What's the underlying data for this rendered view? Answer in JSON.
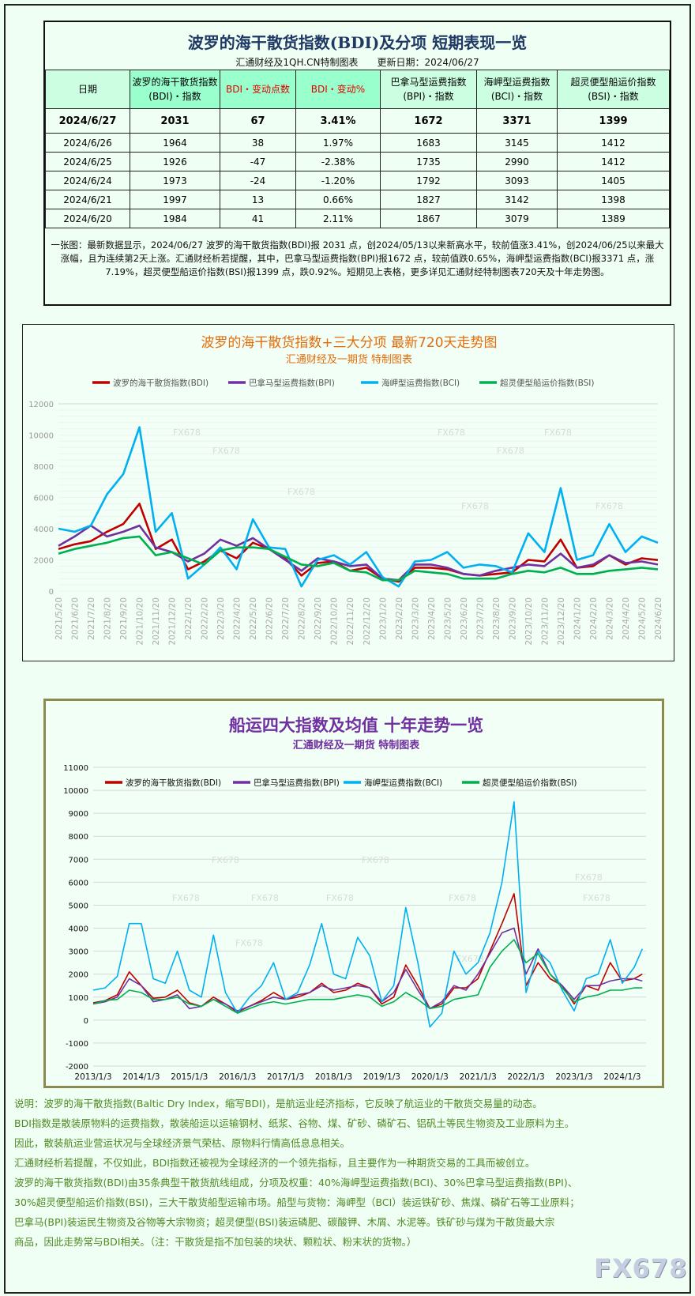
{
  "table": {
    "title": "波罗的海干散货指数(BDI)及分项 短期表现一览",
    "subtitle": "汇通财经及1QH.CN特制图表　　更新日期：2024/06/27",
    "headers": [
      "日期",
      "波罗的海干散货指数\n(BDI)・指数",
      "BDI・变动点数",
      "BDI・变动%",
      "巴拿马型运费指数\n(BPI)・指数",
      "海岬型运费指数\n(BCI)・指数",
      "超灵便型船运价指数\n(BSI)・指数"
    ],
    "rows": [
      [
        "2024/6/27",
        "2031",
        "67",
        "3.41%",
        "1672",
        "3371",
        "1399"
      ],
      [
        "2024/6/26",
        "1964",
        "38",
        "1.97%",
        "1683",
        "3145",
        "1412"
      ],
      [
        "2024/6/25",
        "1926",
        "-47",
        "-2.38%",
        "1735",
        "2990",
        "1412"
      ],
      [
        "2024/6/24",
        "1973",
        "-24",
        "-1.20%",
        "1792",
        "3093",
        "1405"
      ],
      [
        "2024/6/21",
        "1997",
        "13",
        "0.66%",
        "1827",
        "3142",
        "1398"
      ],
      [
        "2024/6/20",
        "1984",
        "41",
        "2.11%",
        "1867",
        "3079",
        "1389"
      ]
    ],
    "note": "一张图：最新数据显示，2024/06/27 波罗的海干散货指数(BDI)报 2031 点，创2024/05/13以来新高水平，较前值涨3.41%，创2024/06/25以来最大涨幅，且为连续第2天上涨。汇通财经析若提醒，其中，巴拿马型运费指数(BPI)报1672 点，较前值跌0.65%，海岬型运费指数(BCI)报3371 点，涨7.19%，超灵便型船运价指数(BSI)报1399 点，跌0.92%。短期见上表格，更多详见汇通财经特制图表720天及十年走势图。"
  },
  "chart_data": [
    {
      "type": "line",
      "title": "波罗的海干散货指数+三大分项  最新720天走势图",
      "subtitle": "汇通财经及一期货  特制图表",
      "title_color": "#e46c0a",
      "ylim": [
        0,
        12000
      ],
      "yticks": [
        0,
        2000,
        4000,
        6000,
        8000,
        10000,
        12000
      ],
      "grid": true,
      "legend": "top",
      "categories": [
        "2021/5/20",
        "2021/6/20",
        "2021/7/20",
        "2021/8/20",
        "2021/9/20",
        "2021/10/20",
        "2021/11/20",
        "2021/12/20",
        "2022/1/20",
        "2022/2/20",
        "2022/3/20",
        "2022/4/20",
        "2022/5/20",
        "2022/6/20",
        "2022/7/20",
        "2022/8/20",
        "2022/9/20",
        "2022/10/20",
        "2022/11/20",
        "2022/12/20",
        "2023/1/20",
        "2023/2/20",
        "2023/3/20",
        "2023/4/20",
        "2023/5/20",
        "2023/6/20",
        "2023/7/20",
        "2023/8/20",
        "2023/9/20",
        "2023/10/20",
        "2023/11/20",
        "2023/12/20",
        "2024/1/20",
        "2024/2/20",
        "2024/3/20",
        "2024/4/20",
        "2024/5/20",
        "2024/6/20"
      ],
      "series": [
        {
          "name": "波罗的海干散货指数(BDI)",
          "color": "#c00000",
          "values": [
            2700,
            3000,
            3200,
            3800,
            4300,
            5600,
            2700,
            3300,
            1400,
            1900,
            2600,
            2100,
            3100,
            2700,
            2100,
            1000,
            1800,
            1900,
            1300,
            1500,
            800,
            600,
            1500,
            1500,
            1400,
            1100,
            1000,
            1100,
            1200,
            2000,
            1900,
            3300,
            1500,
            1600,
            2300,
            1700,
            2100,
            1990
          ]
        },
        {
          "name": "巴拿马型运费指数(BPI)",
          "color": "#7030a0",
          "values": [
            2900,
            3500,
            4200,
            3500,
            3800,
            4200,
            2800,
            2500,
            1900,
            2400,
            3300,
            2900,
            3400,
            2700,
            2000,
            1300,
            2100,
            1900,
            1600,
            1700,
            800,
            700,
            1700,
            1700,
            1500,
            1100,
            1000,
            1300,
            1500,
            1700,
            1600,
            2400,
            1500,
            1700,
            2300,
            1800,
            1900,
            1700
          ]
        },
        {
          "name": "海岬型运费指数(BCI)",
          "color": "#00b0f0",
          "values": [
            4000,
            3800,
            4200,
            6200,
            7500,
            10500,
            3800,
            5000,
            800,
            1700,
            2800,
            1400,
            4600,
            2800,
            2700,
            300,
            2000,
            2300,
            1700,
            2500,
            900,
            300,
            1900,
            2000,
            2500,
            1500,
            1700,
            1600,
            1200,
            3700,
            2500,
            6600,
            2000,
            2300,
            4300,
            2500,
            3500,
            3100
          ]
        },
        {
          "name": "超灵便型船运价指数(BSI)",
          "color": "#00b050",
          "values": [
            2400,
            2700,
            2900,
            3100,
            3400,
            3500,
            2300,
            2500,
            2100,
            1700,
            2600,
            2800,
            2800,
            2700,
            2200,
            1700,
            1600,
            1800,
            1300,
            1200,
            700,
            700,
            1300,
            1200,
            1100,
            800,
            800,
            800,
            1100,
            1300,
            1200,
            1500,
            1100,
            1100,
            1300,
            1400,
            1500,
            1400
          ]
        }
      ],
      "watermark": "FX678"
    },
    {
      "type": "line",
      "title": "船运四大指数及均值 十年走势一览",
      "subtitle": "汇通财经及一期货 特制图表",
      "title_color": "#7030a0",
      "ylim": [
        -2000,
        11000
      ],
      "yticks": [
        -2000,
        -1000,
        0,
        1000,
        2000,
        3000,
        4000,
        5000,
        6000,
        7000,
        8000,
        9000,
        10000,
        11000
      ],
      "grid": true,
      "legend": "top",
      "xticks": [
        "2013/1/3",
        "2014/1/3",
        "2015/1/3",
        "2016/1/3",
        "2017/1/3",
        "2018/1/3",
        "2019/1/3",
        "2020/1/3",
        "2021/1/3",
        "2022/1/3",
        "2023/1/3",
        "2024/1/3"
      ],
      "x": [
        "2013/1",
        "2013/4",
        "2013/7",
        "2013/10",
        "2014/1",
        "2014/4",
        "2014/7",
        "2014/10",
        "2015/1",
        "2015/4",
        "2015/7",
        "2015/10",
        "2016/1",
        "2016/4",
        "2016/7",
        "2016/10",
        "2017/1",
        "2017/4",
        "2017/7",
        "2017/10",
        "2018/1",
        "2018/4",
        "2018/7",
        "2018/10",
        "2019/1",
        "2019/4",
        "2019/7",
        "2019/10",
        "2020/1",
        "2020/4",
        "2020/7",
        "2020/10",
        "2021/1",
        "2021/4",
        "2021/7",
        "2021/10",
        "2022/1",
        "2022/4",
        "2022/7",
        "2022/10",
        "2023/1",
        "2023/4",
        "2023/7",
        "2023/10",
        "2024/1",
        "2024/4",
        "2024/6"
      ],
      "series": [
        {
          "name": "波罗的海干散货指数(BDI)",
          "color": "#c00000",
          "values": [
            750,
            850,
            1100,
            2100,
            1500,
            950,
            1000,
            1300,
            750,
            600,
            1000,
            700,
            350,
            600,
            850,
            1200,
            900,
            1000,
            1200,
            1600,
            1200,
            1300,
            1600,
            1400,
            700,
            1000,
            2400,
            1500,
            500,
            700,
            1400,
            1400,
            1800,
            3000,
            4200,
            5500,
            1500,
            2500,
            1800,
            1500,
            700,
            1500,
            1300,
            2500,
            1700,
            1800,
            2000
          ]
        },
        {
          "name": "巴拿马型运费指数(BPI)",
          "color": "#7030a0",
          "values": [
            700,
            800,
            1000,
            1800,
            1500,
            800,
            900,
            1100,
            500,
            600,
            900,
            700,
            400,
            600,
            800,
            1000,
            900,
            1100,
            1200,
            1500,
            1300,
            1400,
            1500,
            1400,
            800,
            1200,
            2200,
            1300,
            500,
            800,
            1500,
            1300,
            2000,
            2900,
            3800,
            4000,
            2000,
            3100,
            2000,
            1500,
            900,
            1500,
            1500,
            1700,
            1800,
            1800,
            1700
          ]
        },
        {
          "name": "海岬型运费指数(BCI)",
          "color": "#00b0f0",
          "values": [
            1300,
            1400,
            1900,
            4200,
            4200,
            1800,
            1600,
            3000,
            1300,
            1000,
            3700,
            1200,
            300,
            1000,
            1500,
            2500,
            900,
            1200,
            2400,
            4200,
            2000,
            1800,
            3600,
            2800,
            800,
            1500,
            4900,
            2500,
            -300,
            300,
            3000,
            2000,
            2500,
            3800,
            6000,
            9500,
            1200,
            3000,
            2500,
            1300,
            400,
            1800,
            2000,
            3500,
            1600,
            2300,
            3100
          ]
        },
        {
          "name": "超灵便型船运价指数(BSI)",
          "color": "#00b050",
          "values": [
            700,
            850,
            900,
            1300,
            1200,
            900,
            900,
            1000,
            700,
            600,
            900,
            600,
            300,
            500,
            700,
            800,
            700,
            800,
            900,
            900,
            900,
            1000,
            1100,
            1000,
            600,
            800,
            1200,
            900,
            500,
            600,
            900,
            1000,
            1100,
            2300,
            3000,
            3500,
            2500,
            2900,
            2000,
            1400,
            800,
            1000,
            1100,
            1300,
            1300,
            1400,
            1400
          ]
        }
      ],
      "watermark": "FX678"
    }
  ],
  "notes": [
    "说明：波罗的海干散货指数(Baltic Dry Index，缩写BDI)，是航运业经济指标，它反映了航运业的干散货交易量的动态。",
    "BDI指数是散装原物料的运费指数，散装船运以运输钢材、纸浆、谷物、煤、矿砂、磷矿石、铝矾土等民生物资及工业原料为主。",
    "因此，散装航运业营运状况与全球经济景气荣枯、原物料行情高低息息相关。",
    "汇通财经析若提醒，不仅如此，BDI指数还被视为全球经济的一个领先指标，且主要作为一种期货交易的工具而被创立。",
    "波罗的海干散货指数(BDI)由35条典型干散货航线组成，分项及权重：40%海岬型运费指数(BCI)、30%巴拿马型运费指数(BPI)、",
    "30%超灵便型船运价指数(BSI)，三大干散货船型运输市场。船型与货物：海岬型（BCI）装运铁矿砂、焦煤、磷矿石等工业原料；",
    "巴拿马(BPI)装运民生物资及谷物等大宗物资；超灵便型(BSI)装运磷肥、碳酸钾、木屑、水泥等。铁矿砂与煤为干散货最大宗",
    "商品，因此走势常与BDI相关。（注：干散货是指不加包装的块状、颗粒状、粉末状的货物。）"
  ],
  "watermark": "FX678"
}
